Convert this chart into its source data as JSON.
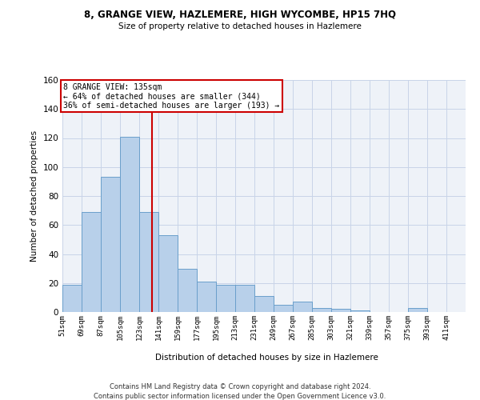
{
  "title1": "8, GRANGE VIEW, HAZLEMERE, HIGH WYCOMBE, HP15 7HQ",
  "title2": "Size of property relative to detached houses in Hazlemere",
  "xlabel": "Distribution of detached houses by size in Hazlemere",
  "ylabel": "Number of detached properties",
  "footer1": "Contains HM Land Registry data © Crown copyright and database right 2024.",
  "footer2": "Contains public sector information licensed under the Open Government Licence v3.0.",
  "bin_labels": [
    "51sqm",
    "69sqm",
    "87sqm",
    "105sqm",
    "123sqm",
    "141sqm",
    "159sqm",
    "177sqm",
    "195sqm",
    "213sqm",
    "231sqm",
    "249sqm",
    "267sqm",
    "285sqm",
    "303sqm",
    "321sqm",
    "339sqm",
    "357sqm",
    "375sqm",
    "393sqm",
    "411sqm"
  ],
  "bar_values": [
    19,
    69,
    93,
    121,
    69,
    53,
    30,
    21,
    19,
    19,
    11,
    5,
    7,
    3,
    2,
    1,
    0,
    0,
    3,
    0,
    0
  ],
  "bar_color": "#b8d0ea",
  "bar_edge_color": "#6a9fcb",
  "subject_sqm": 135,
  "bin_edges": [
    51,
    69,
    87,
    105,
    123,
    141,
    159,
    177,
    195,
    213,
    231,
    249,
    267,
    285,
    303,
    321,
    339,
    357,
    375,
    393,
    411,
    429
  ],
  "annotation_title": "8 GRANGE VIEW: 135sqm",
  "annotation_line1": "← 64% of detached houses are smaller (344)",
  "annotation_line2": "36% of semi-detached houses are larger (193) →",
  "ylim": [
    0,
    160
  ],
  "yticks": [
    0,
    20,
    40,
    60,
    80,
    100,
    120,
    140,
    160
  ],
  "vline_color": "#cc0000",
  "annotation_box_color": "#ffffff",
  "annotation_box_edge": "#cc0000",
  "bg_color": "#eef2f8",
  "grid_color": "#c8d4e8"
}
